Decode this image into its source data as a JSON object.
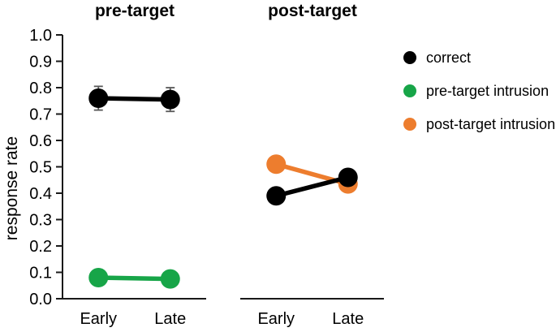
{
  "chart_data": {
    "type": "line",
    "ylabel": "response rate",
    "ylim": [
      0.0,
      1.0
    ],
    "ytick_step": 0.1,
    "grid": false,
    "legend_position": "right",
    "categories": [
      "Early",
      "Late"
    ],
    "panels": [
      {
        "title": "pre-target",
        "series": [
          {
            "name": "correct",
            "color": "#000000",
            "values": [
              0.76,
              0.755
            ],
            "errors": [
              0.045,
              0.045
            ]
          },
          {
            "name": "pre-target intrusion",
            "color": "#17a548",
            "values": [
              0.08,
              0.075
            ],
            "errors": [
              0.02,
              0.02
            ]
          }
        ]
      },
      {
        "title": "post-target",
        "series": [
          {
            "name": "post-target intrusion",
            "color": "#ed7d2e",
            "values": [
              0.51,
              0.435
            ],
            "errors": [
              0.025,
              0.025
            ]
          },
          {
            "name": "correct",
            "color": "#000000",
            "values": [
              0.39,
              0.46
            ],
            "errors": [
              0.03,
              0.03
            ]
          }
        ]
      }
    ],
    "legend": [
      {
        "label": "correct",
        "color": "#000000"
      },
      {
        "label": "pre-target intrusion",
        "color": "#17a548"
      },
      {
        "label": "post-target intrusion",
        "color": "#ed7d2e"
      }
    ]
  }
}
